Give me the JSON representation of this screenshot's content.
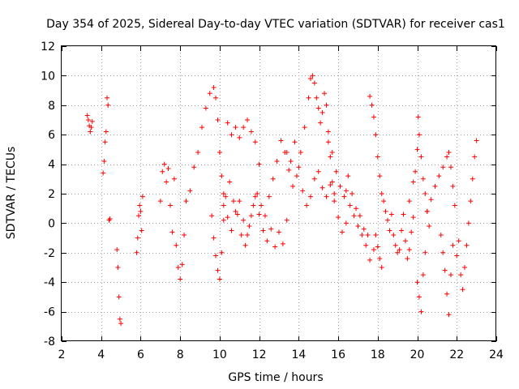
{
  "chart_data": {
    "type": "scatter",
    "title": "Day 354 of 2025, Sidereal Day-to-day VTEC variation (SDTVAR) for receiver cas1",
    "xlabel": "GPS time / hours",
    "ylabel": "SDTVAR / TECUs",
    "xlim": [
      2,
      24
    ],
    "ylim": [
      -8,
      12
    ],
    "xticks": [
      2,
      4,
      6,
      8,
      10,
      12,
      14,
      16,
      18,
      20,
      22,
      24
    ],
    "yticks": [
      -8,
      -6,
      -4,
      -2,
      0,
      2,
      4,
      6,
      8,
      10,
      12
    ],
    "xtick_labels": [
      "2",
      "4",
      "6",
      "8",
      "10",
      "12",
      "14",
      "16",
      "18",
      "20",
      "22",
      "24"
    ],
    "ytick_labels": [
      "-8",
      "-6",
      "-4",
      "-2",
      "0",
      "2",
      "4",
      "6",
      "8",
      "10",
      "12"
    ],
    "grid": true,
    "marker": "+",
    "marker_color": "#ff0000",
    "series": [
      {
        "name": "SDTVAR",
        "color": "#ff0000",
        "x": [
          3.3,
          3.35,
          3.4,
          3.45,
          3.5,
          3.55,
          4.1,
          4.15,
          4.2,
          4.25,
          4.3,
          4.35,
          4.4,
          4.45,
          4.8,
          4.85,
          4.9,
          4.95,
          5.0,
          5.8,
          5.85,
          5.9,
          5.95,
          6.0,
          6.05,
          6.1,
          7.0,
          7.1,
          7.2,
          7.3,
          7.4,
          7.5,
          7.6,
          7.7,
          7.8,
          7.9,
          8.0,
          8.1,
          8.2,
          8.3,
          8.5,
          8.7,
          8.9,
          9.1,
          9.3,
          9.5,
          9.7,
          9.8,
          9.9,
          10.0,
          10.1,
          10.2,
          9.6,
          9.7,
          9.8,
          9.9,
          10.0,
          10.1,
          10.2,
          10.3,
          10.4,
          10.6,
          10.8,
          11.0,
          11.2,
          11.4,
          11.6,
          11.8,
          12.0,
          10.2,
          10.4,
          10.6,
          10.8,
          11.0,
          11.2,
          11.4,
          11.6,
          11.8,
          12.0,
          12.2,
          12.4,
          12.6,
          12.8,
          13.0,
          13.2,
          13.4,
          10.5,
          10.7,
          10.9,
          11.1,
          11.3,
          11.5,
          11.7,
          11.9,
          12.1,
          12.3,
          12.5,
          12.7,
          12.9,
          13.1,
          13.3,
          13.5,
          13.7,
          13.9,
          14.1,
          14.3,
          14.5,
          14.6,
          14.7,
          14.8,
          14.9,
          15.0,
          15.1,
          15.2,
          15.3,
          15.4,
          15.5,
          15.6,
          15.7,
          15.8,
          13.4,
          13.6,
          13.8,
          14.0,
          14.2,
          14.4,
          14.6,
          14.8,
          15.0,
          15.2,
          15.4,
          15.6,
          15.8,
          16.0,
          16.2,
          16.4,
          15.5,
          15.7,
          15.9,
          16.1,
          16.3,
          16.5,
          16.7,
          16.9,
          17.1,
          17.3,
          17.5,
          16.4,
          16.6,
          16.8,
          17.0,
          17.2,
          17.4,
          17.6,
          17.8,
          17.9,
          18.0,
          18.1,
          18.2,
          17.6,
          17.7,
          17.8,
          17.9,
          18.0,
          18.1,
          18.2,
          18.3,
          18.4,
          18.5,
          18.6,
          18.7,
          18.8,
          18.9,
          19.0,
          19.1,
          19.2,
          19.3,
          19.4,
          19.5,
          19.6,
          19.7,
          19.8,
          19.6,
          19.8,
          19.9,
          20.0,
          20.05,
          20.1,
          20.2,
          20.3,
          20.4,
          20.5,
          20.6,
          20.0,
          20.1,
          20.2,
          20.3,
          20.4,
          20.5,
          20.7,
          20.9,
          21.1,
          21.3,
          21.5,
          21.6,
          21.7,
          21.8,
          21.9,
          21.2,
          21.3,
          21.4,
          21.5,
          21.6,
          21.7,
          21.8,
          22.0,
          22.1,
          22.2,
          22.3,
          22.4,
          22.5,
          22.6,
          22.7,
          22.8,
          22.9,
          23.0
        ],
        "y": [
          7.3,
          7.0,
          6.6,
          6.2,
          6.5,
          6.9,
          3.4,
          4.2,
          5.5,
          6.2,
          8.5,
          8.0,
          0.2,
          0.3,
          -1.8,
          -3.0,
          -5.0,
          -6.5,
          -6.8,
          -2.0,
          -1.0,
          0.5,
          1.2,
          0.8,
          -0.5,
          1.8,
          1.5,
          3.5,
          4.0,
          2.8,
          3.7,
          1.2,
          -0.6,
          3.0,
          -1.5,
          -3.0,
          -3.8,
          -2.8,
          -0.8,
          1.5,
          2.2,
          3.8,
          4.8,
          6.5,
          7.8,
          8.8,
          9.2,
          8.5,
          7.0,
          4.8,
          3.2,
          2.0,
          0.5,
          -1.0,
          -2.2,
          -3.2,
          -3.8,
          -2.0,
          0.2,
          1.8,
          6.8,
          6.0,
          6.5,
          5.8,
          6.5,
          7.0,
          6.2,
          5.5,
          4.0,
          1.2,
          0.4,
          -0.5,
          0.8,
          1.5,
          0.2,
          -0.8,
          0.5,
          1.8,
          0.6,
          -0.5,
          -1.2,
          -0.4,
          -1.6,
          -0.6,
          -1.4,
          0.2,
          2.8,
          1.5,
          0.6,
          -0.8,
          -1.5,
          -0.2,
          1.2,
          2.0,
          1.2,
          0.5,
          1.8,
          3.0,
          4.2,
          5.6,
          4.8,
          3.6,
          2.5,
          3.2,
          4.8,
          6.5,
          8.5,
          9.8,
          10.0,
          9.5,
          8.5,
          7.8,
          6.8,
          7.5,
          8.8,
          8.0,
          6.2,
          4.5,
          2.8,
          2.0,
          4.8,
          4.2,
          5.5,
          3.8,
          2.2,
          1.2,
          1.8,
          3.0,
          3.5,
          2.4,
          1.8,
          2.6,
          1.5,
          0.4,
          -0.6,
          0.0,
          5.5,
          4.8,
          3.5,
          2.5,
          1.8,
          3.2,
          2.0,
          1.0,
          0.5,
          -0.4,
          -0.8,
          2.2,
          1.2,
          0.5,
          -0.2,
          -0.8,
          -1.5,
          -2.5,
          -1.8,
          -0.8,
          -1.6,
          -2.4,
          -3.0,
          8.6,
          8.0,
          7.2,
          6.0,
          4.5,
          3.2,
          2.0,
          1.5,
          0.8,
          0.2,
          -0.5,
          0.6,
          -0.8,
          -1.5,
          -2.0,
          -1.8,
          -0.5,
          0.6,
          -1.2,
          -2.4,
          -1.8,
          -0.6,
          0.4,
          1.5,
          2.8,
          3.5,
          5.0,
          7.2,
          6.0,
          4.5,
          3.0,
          2.0,
          0.8,
          -0.2,
          -4.0,
          -5.0,
          -6.0,
          -3.5,
          -2.0,
          0.8,
          1.6,
          2.5,
          3.2,
          3.8,
          4.5,
          4.8,
          3.8,
          2.5,
          1.2,
          -0.8,
          -2.0,
          -3.2,
          -4.8,
          -6.2,
          -3.5,
          -1.5,
          -2.2,
          -1.2,
          -3.5,
          -4.5,
          -3.0,
          -1.5,
          0.0,
          1.5,
          3.0,
          4.5,
          5.6
        ]
      }
    ]
  }
}
